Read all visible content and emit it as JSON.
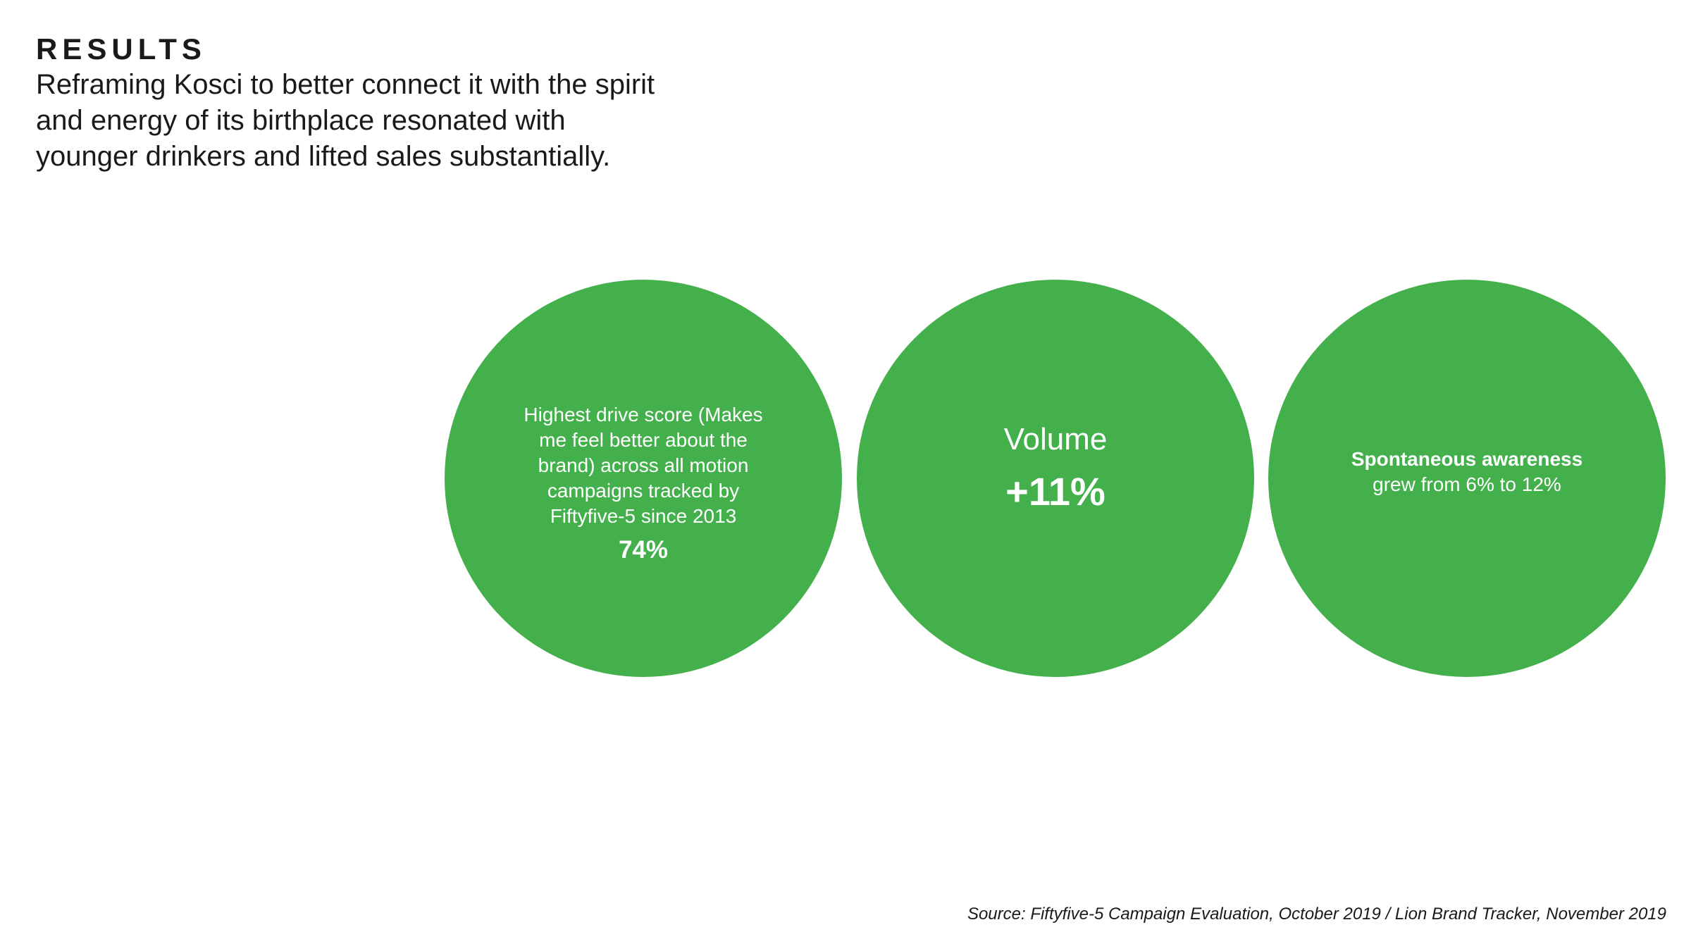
{
  "header": {
    "eyebrow": "RESULTS",
    "headline": "Reframing Kosci to better connect it with the spirit and energy of its birthplace resonated with younger drinkers and lifted sales substantially."
  },
  "stats": [
    {
      "description": "Highest drive score (Makes me feel better about the brand) across all motion campaigns tracked by Fiftyfive-5 since 2013",
      "value": "74%"
    },
    {
      "label": "Volume",
      "value": "+11%"
    },
    {
      "title": "Spontaneous awareness",
      "subtitle": "grew from 6% to 12%"
    }
  ],
  "footer": {
    "source": "Source: Fiftyfive-5 Campaign Evaluation, October 2019 / Lion Brand Tracker, November 2019"
  },
  "colors": {
    "accent": "#43b04c",
    "text": "#1a1a1a",
    "background": "#ffffff"
  }
}
